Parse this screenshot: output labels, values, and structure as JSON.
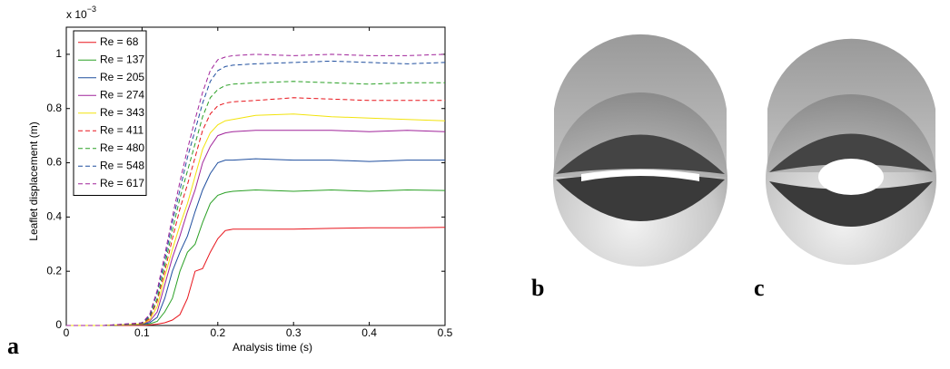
{
  "chart_data": {
    "type": "line",
    "xlabel": "Analysis time (s)",
    "ylabel": "Leaflet displacement (m)",
    "y_multiplier": "x 10",
    "y_exponent": "−3",
    "x": [
      0,
      0.05,
      0.1,
      0.11,
      0.12,
      0.13,
      0.14,
      0.15,
      0.16,
      0.17,
      0.18,
      0.19,
      0.2,
      0.21,
      0.22,
      0.25,
      0.3,
      0.35,
      0.4,
      0.45,
      0.5
    ],
    "xlim": [
      0,
      0.5
    ],
    "xticks": [
      0,
      0.1,
      0.2,
      0.3,
      0.4,
      0.5
    ],
    "ylim": [
      0,
      1.1
    ],
    "yticks": [
      0,
      0.2,
      0.4,
      0.6,
      0.8,
      1
    ],
    "legend": "upper left",
    "series": [
      {
        "name": "Re = 68",
        "color": "#e8141b",
        "linestyle": "solid",
        "values": [
          0,
          0,
          0,
          0.002,
          0.005,
          0.01,
          0.02,
          0.04,
          0.1,
          0.2,
          0.21,
          0.27,
          0.32,
          0.35,
          0.355,
          0.355,
          0.355,
          0.358,
          0.36,
          0.36,
          0.362
        ]
      },
      {
        "name": "Re = 137",
        "color": "#2aa025",
        "linestyle": "solid",
        "values": [
          0,
          0,
          0.003,
          0.006,
          0.015,
          0.05,
          0.1,
          0.2,
          0.27,
          0.3,
          0.38,
          0.45,
          0.48,
          0.49,
          0.495,
          0.5,
          0.495,
          0.5,
          0.495,
          0.5,
          0.498
        ]
      },
      {
        "name": "Re = 205",
        "color": "#1f4e9e",
        "linestyle": "solid",
        "values": [
          0,
          0,
          0.004,
          0.01,
          0.03,
          0.1,
          0.2,
          0.27,
          0.33,
          0.42,
          0.5,
          0.56,
          0.6,
          0.61,
          0.61,
          0.615,
          0.61,
          0.61,
          0.605,
          0.61,
          0.61
        ]
      },
      {
        "name": "Re = 274",
        "color": "#a0239a",
        "linestyle": "solid",
        "values": [
          0,
          0,
          0.005,
          0.015,
          0.05,
          0.15,
          0.25,
          0.33,
          0.42,
          0.5,
          0.6,
          0.66,
          0.7,
          0.71,
          0.715,
          0.72,
          0.72,
          0.72,
          0.715,
          0.72,
          0.715
        ]
      },
      {
        "name": "Re = 343",
        "color": "#f2e30c",
        "linestyle": "solid",
        "values": [
          0,
          0,
          0.006,
          0.02,
          0.07,
          0.18,
          0.28,
          0.37,
          0.45,
          0.55,
          0.65,
          0.71,
          0.74,
          0.755,
          0.76,
          0.775,
          0.78,
          0.77,
          0.765,
          0.76,
          0.755
        ]
      },
      {
        "name": "Re = 411",
        "color": "#e8141b",
        "linestyle": "dashed",
        "values": [
          0,
          0,
          0.007,
          0.025,
          0.09,
          0.2,
          0.32,
          0.43,
          0.52,
          0.62,
          0.72,
          0.78,
          0.81,
          0.82,
          0.825,
          0.83,
          0.84,
          0.835,
          0.83,
          0.83,
          0.83
        ]
      },
      {
        "name": "Re = 480",
        "color": "#2aa025",
        "linestyle": "dashed",
        "values": [
          0,
          0,
          0.008,
          0.03,
          0.1,
          0.22,
          0.35,
          0.47,
          0.57,
          0.67,
          0.77,
          0.84,
          0.87,
          0.885,
          0.89,
          0.895,
          0.9,
          0.895,
          0.89,
          0.895,
          0.895
        ]
      },
      {
        "name": "Re = 548",
        "color": "#1f4e9e",
        "linestyle": "dashed",
        "values": [
          0,
          0,
          0.009,
          0.035,
          0.12,
          0.24,
          0.38,
          0.5,
          0.62,
          0.72,
          0.82,
          0.9,
          0.94,
          0.955,
          0.96,
          0.965,
          0.97,
          0.975,
          0.97,
          0.965,
          0.97
        ]
      },
      {
        "name": "Re = 617",
        "color": "#a0239a",
        "linestyle": "dashed",
        "values": [
          0,
          0,
          0.01,
          0.04,
          0.13,
          0.26,
          0.4,
          0.53,
          0.65,
          0.76,
          0.86,
          0.94,
          0.98,
          0.99,
          0.995,
          1,
          0.995,
          1,
          0.995,
          0.995,
          1
        ]
      }
    ]
  },
  "panels": {
    "a": "a",
    "b": "b",
    "c": "c"
  }
}
